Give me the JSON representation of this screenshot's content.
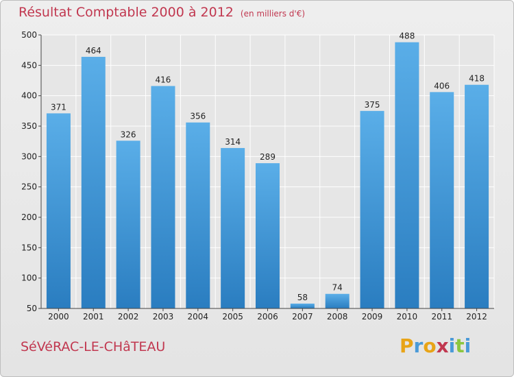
{
  "title": "Résultat Comptable 2000 à 2012",
  "subtitle": "(en milliers d'€)",
  "town": "SéVéRAC-LE-CHâTEAU",
  "logo": {
    "text": "Proxiti",
    "letters": [
      {
        "ch": "P",
        "color": "#e8a417"
      },
      {
        "ch": "r",
        "color": "#4a9ad8"
      },
      {
        "ch": "o",
        "color": "#e8a417"
      },
      {
        "ch": "x",
        "color": "#c1374f"
      },
      {
        "ch": "i",
        "color": "#4a9ad8"
      },
      {
        "ch": "t",
        "color": "#8cc63f"
      },
      {
        "ch": "i",
        "color": "#4a9ad8"
      }
    ]
  },
  "colors": {
    "title": "#c1374f",
    "bar_light": "#5aaee8",
    "bar_dark": "#2a7dc0",
    "grid": "#ffffff"
  },
  "chart_data": {
    "type": "bar",
    "categories": [
      "2000",
      "2001",
      "2002",
      "2003",
      "2004",
      "2005",
      "2006",
      "2007",
      "2008",
      "2009",
      "2010",
      "2011",
      "2012"
    ],
    "values": [
      371,
      464,
      326,
      416,
      356,
      314,
      289,
      58,
      74,
      375,
      488,
      406,
      418
    ],
    "yticks": [
      50,
      100,
      150,
      200,
      250,
      300,
      350,
      400,
      450,
      500
    ],
    "ylim": [
      50,
      500
    ],
    "grid": true
  }
}
